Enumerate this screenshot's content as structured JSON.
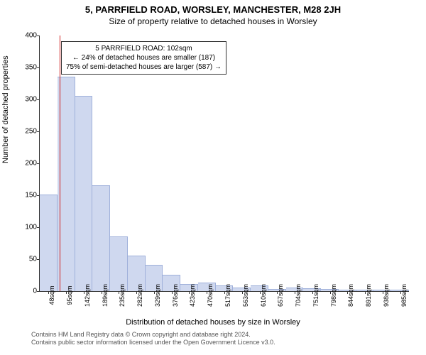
{
  "title_main": "5, PARRFIELD ROAD, WORSLEY, MANCHESTER, M28 2JH",
  "title_sub": "Size of property relative to detached houses in Worsley",
  "ylabel": "Number of detached properties",
  "xlabel": "Distribution of detached houses by size in Worsley",
  "chart": {
    "type": "histogram",
    "bar_fill": "#cfd8ef",
    "bar_stroke": "#9fb0da",
    "marker_color": "#d02020",
    "background": "#ffffff",
    "ylim": [
      0,
      400
    ],
    "ytick_step": 50,
    "xticks": [
      "48sqm",
      "95sqm",
      "142sqm",
      "189sqm",
      "235sqm",
      "282sqm",
      "329sqm",
      "376sqm",
      "423sqm",
      "470sqm",
      "517sqm",
      "563sqm",
      "610sqm",
      "657sqm",
      "704sqm",
      "751sqm",
      "798sqm",
      "844sqm",
      "891sqm",
      "938sqm",
      "985sqm"
    ],
    "bars": [
      150,
      335,
      305,
      165,
      85,
      55,
      40,
      25,
      10,
      12,
      8,
      4,
      8,
      2,
      4,
      3,
      2,
      1,
      1,
      1,
      1
    ],
    "marker_bin_index": 1
  },
  "annotation": {
    "line1": "5 PARRFIELD ROAD: 102sqm",
    "line2": "← 24% of detached houses are smaller (187)",
    "line3": "75% of semi-detached houses are larger (587) →"
  },
  "attribution": {
    "line1": "Contains HM Land Registry data © Crown copyright and database right 2024.",
    "line2": "Contains public sector information licensed under the Open Government Licence v3.0."
  }
}
